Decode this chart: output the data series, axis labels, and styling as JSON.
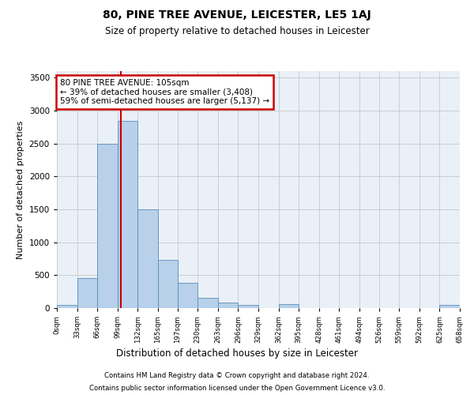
{
  "title": "80, PINE TREE AVENUE, LEICESTER, LE5 1AJ",
  "subtitle": "Size of property relative to detached houses in Leicester",
  "xlabel": "Distribution of detached houses by size in Leicester",
  "ylabel": "Number of detached properties",
  "property_size": 105,
  "property_label": "80 PINE TREE AVENUE: 105sqm",
  "stat1": "← 39% of detached houses are smaller (3,408)",
  "stat2": "59% of semi-detached houses are larger (5,137) →",
  "footnote1": "Contains HM Land Registry data © Crown copyright and database right 2024.",
  "footnote2": "Contains public sector information licensed under the Open Government Licence v3.0.",
  "bin_edges": [
    0,
    33,
    66,
    99,
    132,
    165,
    197,
    230,
    263,
    296,
    329,
    362,
    395,
    428,
    461,
    494,
    526,
    559,
    592,
    625,
    658
  ],
  "bin_counts": [
    50,
    460,
    2500,
    2850,
    1500,
    730,
    380,
    160,
    90,
    50,
    0,
    55,
    0,
    0,
    0,
    0,
    0,
    0,
    0,
    50
  ],
  "bar_color": "#B8D0EA",
  "bar_edge_color": "#5B8DB8",
  "vline_color": "#CC0000",
  "box_edge_color": "#CC0000",
  "box_fill_color": "#FFFFFF",
  "grid_color": "#C8C8C8",
  "background_color": "#EAF0F8",
  "ylim": [
    0,
    3600
  ],
  "yticks": [
    0,
    500,
    1000,
    1500,
    2000,
    2500,
    3000,
    3500
  ]
}
